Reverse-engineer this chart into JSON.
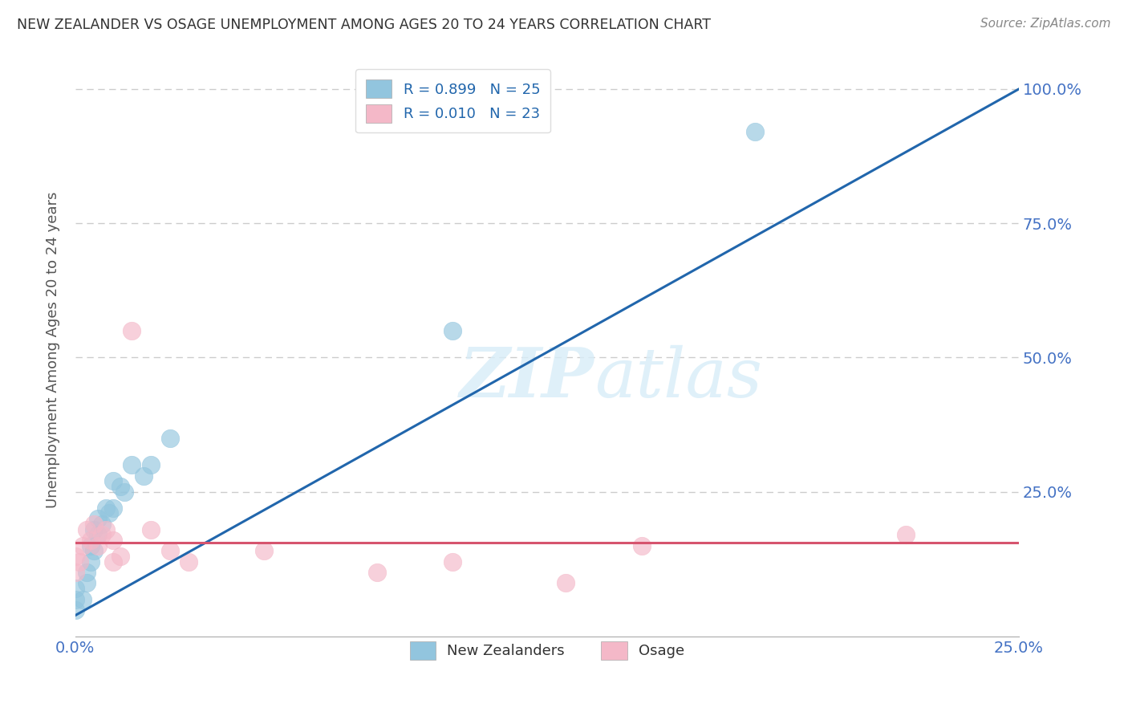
{
  "title": "NEW ZEALANDER VS OSAGE UNEMPLOYMENT AMONG AGES 20 TO 24 YEARS CORRELATION CHART",
  "source": "Source: ZipAtlas.com",
  "ylabel": "Unemployment Among Ages 20 to 24 years",
  "xlim": [
    0.0,
    0.25
  ],
  "ylim": [
    -0.02,
    1.05
  ],
  "xticks": [
    0.0,
    0.05,
    0.1,
    0.15,
    0.2,
    0.25
  ],
  "xtick_labels": [
    "0.0%",
    "",
    "",
    "",
    "",
    "25.0%"
  ],
  "yticks": [
    0.0,
    0.25,
    0.5,
    0.75,
    1.0
  ],
  "ytick_labels": [
    "",
    "25.0%",
    "50.0%",
    "75.0%",
    "100.0%"
  ],
  "blue_color": "#92c5de",
  "pink_color": "#f4b8c8",
  "blue_line_color": "#2166ac",
  "pink_line_color": "#d6546e",
  "legend_blue_label": "R = 0.899   N = 25",
  "legend_pink_label": "R = 0.010   N = 23",
  "legend_title_blue": "New Zealanders",
  "legend_title_pink": "Osage",
  "background_color": "#ffffff",
  "grid_color": "#cccccc",
  "title_color": "#333333",
  "axis_label_color": "#555555",
  "tick_label_color": "#4472c4",
  "nz_x": [
    0.0,
    0.0,
    0.0,
    0.002,
    0.003,
    0.003,
    0.004,
    0.004,
    0.005,
    0.005,
    0.006,
    0.006,
    0.007,
    0.008,
    0.009,
    0.01,
    0.01,
    0.012,
    0.013,
    0.015,
    0.018,
    0.02,
    0.025,
    0.1,
    0.18
  ],
  "nz_y": [
    0.03,
    0.05,
    0.07,
    0.05,
    0.08,
    0.1,
    0.12,
    0.15,
    0.14,
    0.18,
    0.17,
    0.2,
    0.19,
    0.22,
    0.21,
    0.22,
    0.27,
    0.26,
    0.25,
    0.3,
    0.28,
    0.3,
    0.35,
    0.55,
    0.92
  ],
  "osage_x": [
    0.0,
    0.0,
    0.001,
    0.002,
    0.003,
    0.004,
    0.005,
    0.006,
    0.007,
    0.008,
    0.01,
    0.01,
    0.012,
    0.015,
    0.02,
    0.025,
    0.03,
    0.05,
    0.08,
    0.1,
    0.13,
    0.15,
    0.22
  ],
  "osage_y": [
    0.1,
    0.13,
    0.12,
    0.15,
    0.18,
    0.16,
    0.19,
    0.15,
    0.17,
    0.18,
    0.12,
    0.16,
    0.13,
    0.55,
    0.18,
    0.14,
    0.12,
    0.14,
    0.1,
    0.12,
    0.08,
    0.15,
    0.17
  ],
  "blue_trend_x": [
    0.0,
    0.25
  ],
  "blue_trend_y": [
    0.02,
    1.0
  ],
  "pink_trend_x": [
    0.0,
    0.25
  ],
  "pink_trend_y": [
    0.155,
    0.155
  ]
}
